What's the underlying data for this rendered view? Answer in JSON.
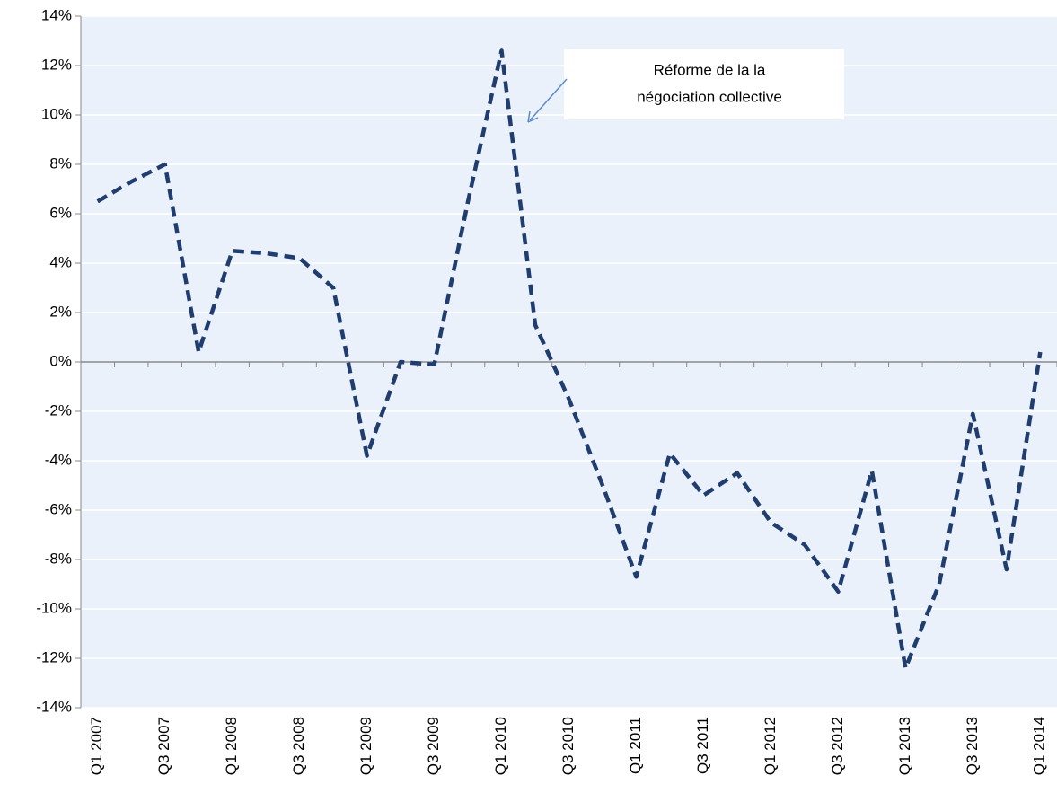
{
  "chart_data": {
    "type": "line",
    "categories": [
      "Q1 2007",
      null,
      "Q3 2007",
      null,
      "Q1 2008",
      null,
      "Q3 2008",
      null,
      "Q1 2009",
      null,
      "Q3 2009",
      null,
      "Q1 2010",
      null,
      "Q3 2010",
      null,
      "Q1 2011",
      null,
      "Q3 2011",
      null,
      "Q1 2012",
      null,
      "Q3 2012",
      null,
      "Q1 2013",
      null,
      "Q3 2013",
      null,
      "Q1 2014"
    ],
    "series": [
      {
        "color": "#1f3d6e",
        "values": [
          6.5,
          7.3,
          8.0,
          0.4,
          4.5,
          4.4,
          4.2,
          3.0,
          -3.8,
          0.0,
          -0.1,
          6.5,
          12.6,
          1.5,
          -1.5,
          -5.0,
          -8.7,
          -3.7,
          -5.4,
          -4.5,
          -6.5,
          -7.4,
          -9.3,
          -4.4,
          -12.4,
          -9.0,
          -2.1,
          -8.4,
          0.4
        ]
      }
    ],
    "ylim": [
      -14,
      14
    ],
    "yticks": [
      {
        "value": -14,
        "label": "-14%"
      },
      {
        "value": -12,
        "label": "-12%"
      },
      {
        "value": -10,
        "label": "-10%"
      },
      {
        "value": -8,
        "label": "-8%"
      },
      {
        "value": -6,
        "label": "-6%"
      },
      {
        "value": -4,
        "label": "-4%"
      },
      {
        "value": -2,
        "label": "-2%"
      },
      {
        "value": 0,
        "label": "0%"
      },
      {
        "value": 2,
        "label": "2%"
      },
      {
        "value": 4,
        "label": "4%"
      },
      {
        "value": 6,
        "label": "6%"
      },
      {
        "value": 8,
        "label": "8%"
      },
      {
        "value": 10,
        "label": "10%"
      },
      {
        "value": 12,
        "label": "12%"
      },
      {
        "value": 14,
        "label": "14%"
      }
    ],
    "grid": true,
    "annotation": [
      "Réforme de la la",
      "négociation collective"
    ]
  }
}
